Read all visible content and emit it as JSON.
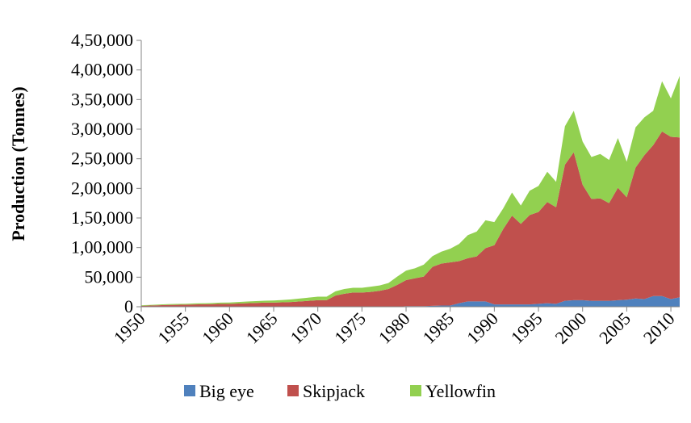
{
  "chart_data": {
    "type": "area",
    "stacked": true,
    "xlabel": "",
    "ylabel": "Production (Tonnes)",
    "xlim": [
      1950,
      2011
    ],
    "ylim": [
      0,
      450000
    ],
    "x_ticks": [
      1950,
      1955,
      1960,
      1965,
      1970,
      1975,
      1980,
      1985,
      1990,
      1995,
      2000,
      2005,
      2010
    ],
    "x_tick_labels": [
      "1950",
      "1955",
      "1960",
      "1965",
      "1970",
      "1975",
      "1980",
      "1985",
      "1990",
      "1995",
      "2000",
      "2005",
      "2010"
    ],
    "y_ticks": [
      0,
      50000,
      100000,
      150000,
      200000,
      250000,
      300000,
      350000,
      400000,
      450000
    ],
    "y_tick_labels": [
      "0",
      "50,000",
      "1,00,000",
      "1,50,000",
      "2,00,000",
      "2,50,000",
      "3,00,000",
      "3,50,000",
      "4,00,000",
      "4,50,000"
    ],
    "grid": false,
    "legend_position": "bottom",
    "x": [
      1950,
      1951,
      1952,
      1953,
      1954,
      1955,
      1956,
      1957,
      1958,
      1959,
      1960,
      1961,
      1962,
      1963,
      1964,
      1965,
      1966,
      1967,
      1968,
      1969,
      1970,
      1971,
      1972,
      1973,
      1974,
      1975,
      1976,
      1977,
      1978,
      1979,
      1980,
      1981,
      1982,
      1983,
      1984,
      1985,
      1986,
      1987,
      1988,
      1989,
      1990,
      1991,
      1992,
      1993,
      1994,
      1995,
      1996,
      1997,
      1998,
      1999,
      2000,
      2001,
      2002,
      2003,
      2004,
      2005,
      2006,
      2007,
      2008,
      2009,
      2010,
      2011
    ],
    "series": [
      {
        "name": "Big eye",
        "color": "#4f81bd",
        "values": [
          0,
          0,
          0,
          0,
          0,
          0,
          0,
          0,
          0,
          0,
          0,
          0,
          0,
          0,
          0,
          0,
          0,
          0,
          0,
          0,
          0,
          0,
          0,
          0,
          0,
          0,
          0,
          0,
          0,
          0,
          1000,
          1000,
          1000,
          1500,
          2000,
          2000,
          6000,
          9000,
          9000,
          9000,
          4000,
          4000,
          4000,
          4000,
          4000,
          5000,
          6000,
          5000,
          10000,
          11000,
          11000,
          10000,
          10000,
          10000,
          11000,
          12000,
          14000,
          13000,
          18000,
          18000,
          13000,
          16000
        ]
      },
      {
        "name": "Skipjack",
        "color": "#c0504d",
        "values": [
          1500,
          2000,
          2500,
          3000,
          3200,
          3500,
          4000,
          4200,
          4500,
          5000,
          5000,
          5500,
          6000,
          6500,
          7000,
          7000,
          7500,
          8000,
          9000,
          10000,
          11000,
          11000,
          19000,
          22000,
          24000,
          24000,
          25000,
          27000,
          30000,
          37000,
          44000,
          47000,
          50000,
          66000,
          71000,
          73000,
          71000,
          73000,
          76000,
          90000,
          100000,
          127000,
          150000,
          136000,
          151000,
          155000,
          171000,
          163000,
          230000,
          250000,
          195000,
          172000,
          173000,
          165000,
          190000,
          173000,
          221000,
          243000,
          255000,
          278000,
          274000,
          270000
        ]
      },
      {
        "name": "Yellowfin",
        "color": "#92d050",
        "values": [
          1000,
          1000,
          1200,
          1400,
          1500,
          1500,
          1600,
          1700,
          1800,
          2000,
          2200,
          2500,
          2800,
          3000,
          3200,
          3500,
          4000,
          4500,
          5000,
          5500,
          6000,
          6000,
          7000,
          8000,
          8000,
          8000,
          9000,
          9000,
          10000,
          14000,
          16000,
          17000,
          20000,
          18000,
          20000,
          23000,
          29000,
          39000,
          42000,
          47000,
          39000,
          35000,
          39000,
          31000,
          41000,
          44000,
          51000,
          43000,
          65000,
          70000,
          73000,
          71000,
          75000,
          73000,
          84000,
          60000,
          68000,
          64000,
          58000,
          85000,
          65000,
          104000
        ]
      }
    ]
  }
}
